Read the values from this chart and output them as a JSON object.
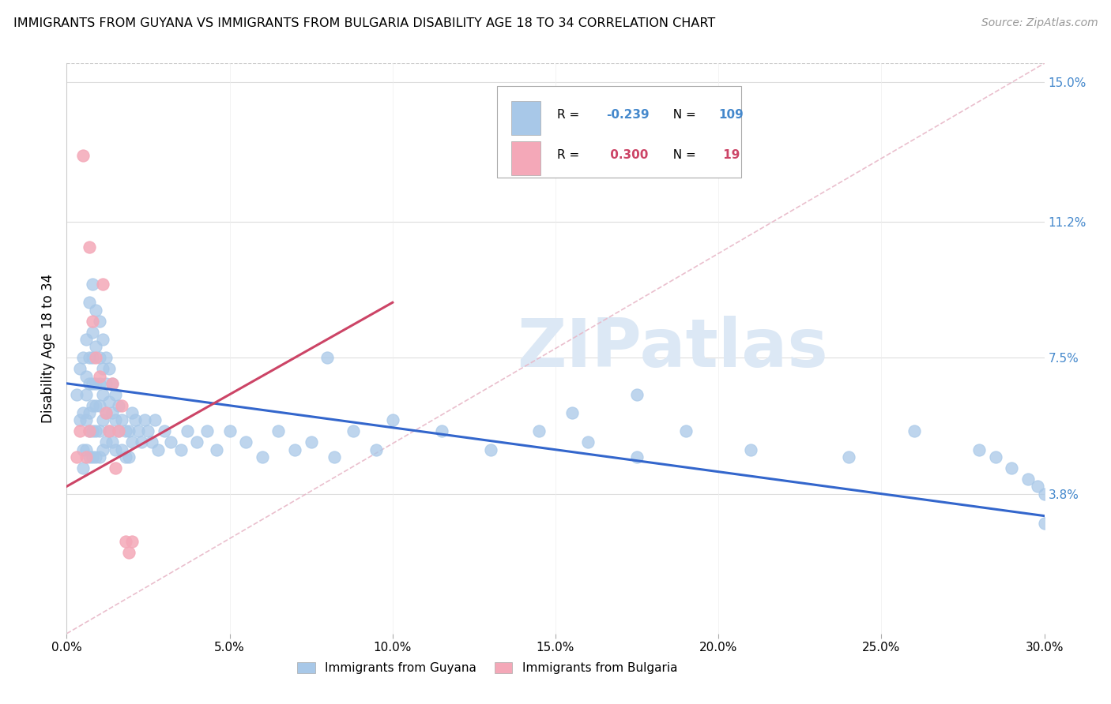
{
  "title": "IMMIGRANTS FROM GUYANA VS IMMIGRANTS FROM BULGARIA DISABILITY AGE 18 TO 34 CORRELATION CHART",
  "source": "Source: ZipAtlas.com",
  "ylabel": "Disability Age 18 to 34",
  "xlim": [
    0.0,
    0.3
  ],
  "ylim": [
    0.0,
    0.155
  ],
  "xtick_values": [
    0.0,
    0.05,
    0.1,
    0.15,
    0.2,
    0.25,
    0.3
  ],
  "xtick_labels": [
    "0.0%",
    "5.0%",
    "10.0%",
    "15.0%",
    "20.0%",
    "25.0%",
    "30.0%"
  ],
  "right_ytick_labels": [
    "15.0%",
    "11.2%",
    "7.5%",
    "3.8%"
  ],
  "right_ytick_values": [
    0.15,
    0.112,
    0.075,
    0.038
  ],
  "legend1_label": "Immigrants from Guyana",
  "legend2_label": "Immigrants from Bulgaria",
  "r1": -0.239,
  "n1": 109,
  "r2": 0.3,
  "n2": 19,
  "color_guyana": "#a8c8e8",
  "color_bulgaria": "#f4a8b8",
  "color_line_guyana": "#3366cc",
  "color_line_bulgaria": "#cc4466",
  "color_diag": "#e8b8c8",
  "watermark": "ZIPatlas",
  "watermark_color": "#dce8f5",
  "background": "#ffffff",
  "blue_line": [
    [
      0.0,
      0.068
    ],
    [
      0.3,
      0.032
    ]
  ],
  "pink_line": [
    [
      0.0,
      0.04
    ],
    [
      0.1,
      0.09
    ]
  ],
  "diag_line": [
    [
      0.0,
      0.0
    ],
    [
      0.3,
      0.155
    ]
  ],
  "guyana_x": [
    0.003,
    0.004,
    0.004,
    0.005,
    0.005,
    0.005,
    0.005,
    0.006,
    0.006,
    0.006,
    0.006,
    0.006,
    0.007,
    0.007,
    0.007,
    0.007,
    0.007,
    0.007,
    0.008,
    0.008,
    0.008,
    0.008,
    0.008,
    0.008,
    0.008,
    0.009,
    0.009,
    0.009,
    0.009,
    0.009,
    0.009,
    0.01,
    0.01,
    0.01,
    0.01,
    0.01,
    0.01,
    0.011,
    0.011,
    0.011,
    0.011,
    0.011,
    0.012,
    0.012,
    0.012,
    0.012,
    0.013,
    0.013,
    0.013,
    0.014,
    0.014,
    0.014,
    0.015,
    0.015,
    0.015,
    0.016,
    0.016,
    0.017,
    0.017,
    0.018,
    0.018,
    0.019,
    0.019,
    0.02,
    0.02,
    0.021,
    0.022,
    0.023,
    0.024,
    0.025,
    0.026,
    0.027,
    0.028,
    0.03,
    0.032,
    0.035,
    0.037,
    0.04,
    0.043,
    0.046,
    0.05,
    0.055,
    0.06,
    0.065,
    0.07,
    0.075,
    0.082,
    0.088,
    0.095,
    0.1,
    0.115,
    0.13,
    0.145,
    0.16,
    0.175,
    0.19,
    0.21,
    0.24,
    0.26,
    0.28,
    0.285,
    0.29,
    0.295,
    0.298,
    0.3,
    0.3,
    0.155,
    0.175,
    0.08
  ],
  "guyana_y": [
    0.065,
    0.058,
    0.072,
    0.075,
    0.06,
    0.05,
    0.045,
    0.08,
    0.065,
    0.07,
    0.058,
    0.05,
    0.09,
    0.075,
    0.068,
    0.06,
    0.055,
    0.048,
    0.095,
    0.082,
    0.075,
    0.068,
    0.062,
    0.055,
    0.048,
    0.088,
    0.078,
    0.068,
    0.062,
    0.055,
    0.048,
    0.085,
    0.075,
    0.068,
    0.062,
    0.055,
    0.048,
    0.08,
    0.072,
    0.065,
    0.058,
    0.05,
    0.075,
    0.068,
    0.06,
    0.052,
    0.072,
    0.063,
    0.055,
    0.068,
    0.06,
    0.052,
    0.065,
    0.058,
    0.05,
    0.062,
    0.055,
    0.058,
    0.05,
    0.055,
    0.048,
    0.055,
    0.048,
    0.06,
    0.052,
    0.058,
    0.055,
    0.052,
    0.058,
    0.055,
    0.052,
    0.058,
    0.05,
    0.055,
    0.052,
    0.05,
    0.055,
    0.052,
    0.055,
    0.05,
    0.055,
    0.052,
    0.048,
    0.055,
    0.05,
    0.052,
    0.048,
    0.055,
    0.05,
    0.058,
    0.055,
    0.05,
    0.055,
    0.052,
    0.048,
    0.055,
    0.05,
    0.048,
    0.055,
    0.05,
    0.048,
    0.045,
    0.042,
    0.04,
    0.038,
    0.03,
    0.06,
    0.065,
    0.075
  ],
  "bulgaria_x": [
    0.003,
    0.004,
    0.005,
    0.006,
    0.007,
    0.007,
    0.008,
    0.009,
    0.01,
    0.011,
    0.012,
    0.013,
    0.014,
    0.015,
    0.016,
    0.017,
    0.018,
    0.019,
    0.02
  ],
  "bulgaria_y": [
    0.048,
    0.055,
    0.13,
    0.048,
    0.105,
    0.055,
    0.085,
    0.075,
    0.07,
    0.095,
    0.06,
    0.055,
    0.068,
    0.045,
    0.055,
    0.062,
    0.025,
    0.022,
    0.025
  ]
}
